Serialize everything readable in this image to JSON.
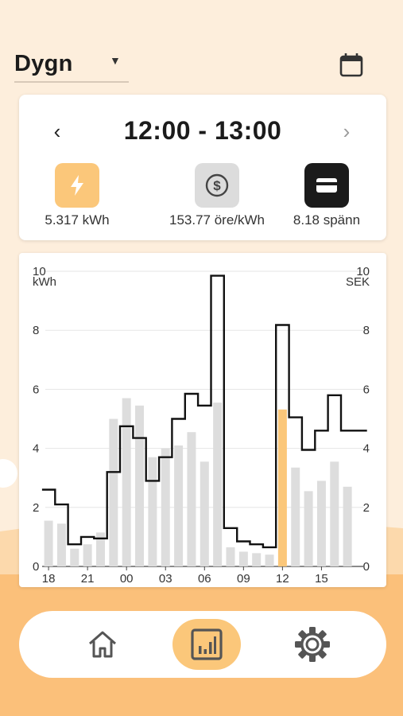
{
  "header": {
    "period": "Dygn",
    "caret_icon": "caret-down-icon",
    "calendar_icon": "calendar-icon"
  },
  "summary": {
    "prev_symbol": "‹",
    "next_symbol": "›",
    "time_range": "12:00 - 13:00",
    "energy": {
      "value": "5.317 kWh",
      "icon": "lightning-icon",
      "color": "#fbc77a"
    },
    "price": {
      "value": "153.77 öre/kWh",
      "icon": "dollar-coin-icon",
      "color": "#dcdcdc"
    },
    "cost": {
      "value": "8.18 spänn",
      "icon": "credit-card-icon",
      "color": "#1b1b1b"
    }
  },
  "chart_data": {
    "type": "bar",
    "left_axis_label": "kWh",
    "right_axis_label": "SEK",
    "left_ticks": [
      "0",
      "2",
      "4",
      "6",
      "8",
      "10"
    ],
    "right_ticks": [
      "0",
      "2",
      "4",
      "6",
      "8",
      "10"
    ],
    "ylim": [
      0,
      10
    ],
    "x_tick_labels": [
      {
        "hour": 18,
        "label": "18"
      },
      {
        "hour": 21,
        "label": "21"
      },
      {
        "hour": 24,
        "label": "00"
      },
      {
        "hour": 27,
        "label": "03"
      },
      {
        "hour": 30,
        "label": "06"
      },
      {
        "hour": 33,
        "label": "09"
      },
      {
        "hour": 36,
        "label": "12"
      },
      {
        "hour": 39,
        "label": "15"
      }
    ],
    "hours": [
      18,
      19,
      20,
      21,
      22,
      23,
      24,
      25,
      26,
      27,
      28,
      29,
      30,
      31,
      32,
      33,
      34,
      35,
      36,
      37,
      38,
      39,
      40,
      41,
      42
    ],
    "consumption_kwh": [
      1.55,
      1.45,
      0.6,
      0.75,
      1.15,
      5.0,
      5.7,
      5.45,
      3.7,
      4.0,
      4.1,
      4.55,
      3.55,
      5.55,
      0.65,
      0.5,
      0.45,
      0.4,
      5.317,
      3.35,
      2.55,
      2.9,
      3.55,
      2.7,
      0
    ],
    "cost_sek": [
      2.6,
      2.1,
      0.75,
      1.0,
      0.95,
      3.2,
      4.75,
      4.35,
      2.9,
      3.7,
      5.0,
      5.85,
      5.45,
      9.85,
      1.3,
      0.85,
      0.75,
      0.65,
      8.18,
      5.05,
      3.95,
      4.6,
      5.8,
      4.6,
      4.6
    ],
    "highlight_hour": 36,
    "colors": {
      "bar": "#dddddd",
      "highlight": "#fbc77a",
      "line": "#111111",
      "grid": "#e6e6e6"
    },
    "grid": true
  },
  "nav": {
    "home_icon": "home-icon",
    "stats_icon": "bar-chart-icon",
    "settings_icon": "gear-icon",
    "active": "stats"
  }
}
